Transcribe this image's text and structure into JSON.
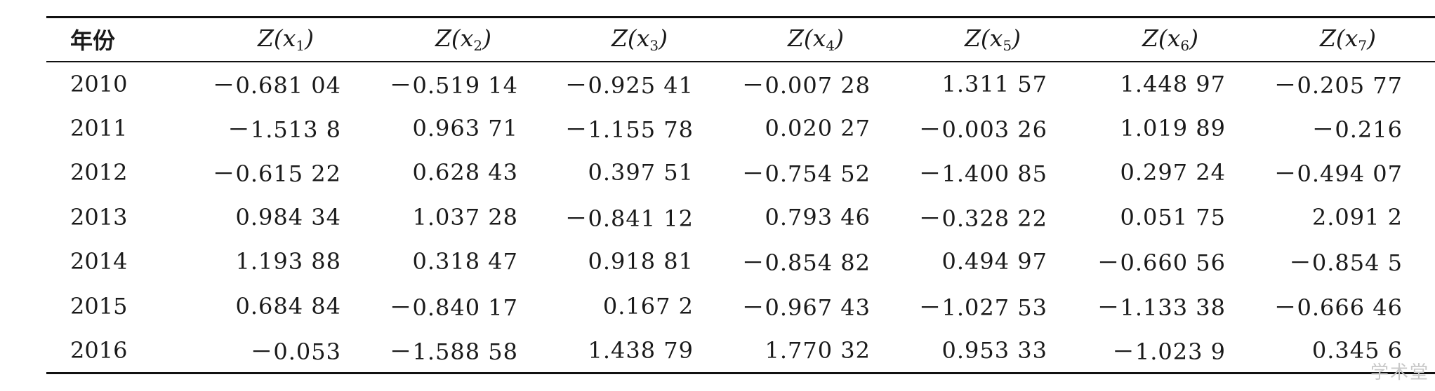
{
  "table": {
    "header": {
      "year_label": "年份",
      "z_columns": [
        {
          "fn": "Z(x",
          "sub": "1",
          "close": ")"
        },
        {
          "fn": "Z(x",
          "sub": "2",
          "close": ")"
        },
        {
          "fn": "Z(x",
          "sub": "3",
          "close": ")"
        },
        {
          "fn": "Z(x",
          "sub": "4",
          "close": ")"
        },
        {
          "fn": "Z(x",
          "sub": "5",
          "close": ")"
        },
        {
          "fn": "Z(x",
          "sub": "6",
          "close": ")"
        },
        {
          "fn": "Z(x",
          "sub": "7",
          "close": ")"
        }
      ]
    },
    "rows": [
      {
        "year": "2010",
        "values": [
          "－0.681 04",
          "－0.519 14",
          "－0.925 41",
          "－0.007 28",
          "1.311 57",
          "1.448 97",
          "－0.205 77"
        ]
      },
      {
        "year": "2011",
        "values": [
          "－1.513 8",
          "0.963 71",
          "－1.155 78",
          "0.020 27",
          "－0.003 26",
          "1.019 89",
          "－0.216"
        ]
      },
      {
        "year": "2012",
        "values": [
          "－0.615 22",
          "0.628 43",
          "0.397 51",
          "－0.754 52",
          "－1.400 85",
          "0.297 24",
          "－0.494 07"
        ]
      },
      {
        "year": "2013",
        "values": [
          "0.984 34",
          "1.037 28",
          "－0.841 12",
          "0.793 46",
          "－0.328 22",
          "0.051 75",
          "2.091 2"
        ]
      },
      {
        "year": "2014",
        "values": [
          "1.193 88",
          "0.318 47",
          "0.918 81",
          "－0.854 82",
          "0.494 97",
          "－0.660 56",
          "－0.854 5"
        ]
      },
      {
        "year": "2015",
        "values": [
          "0.684 84",
          "－0.840 17",
          "0.167 2",
          "－0.967 43",
          "－1.027 53",
          "－1.133 38",
          "－0.666 46"
        ]
      },
      {
        "year": "2016",
        "values": [
          "－0.053",
          "－1.588 58",
          "1.438 79",
          "1.770 32",
          "0.953 33",
          "－1.023 9",
          "0.345 6"
        ]
      }
    ]
  },
  "watermark": "学术堂"
}
